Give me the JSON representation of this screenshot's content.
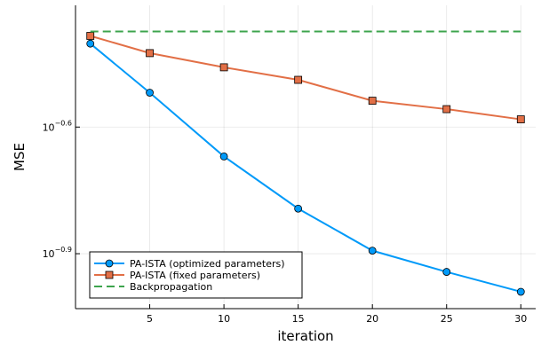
{
  "chart_data": {
    "type": "line",
    "xlabel": "iteration",
    "ylabel": "MSE",
    "y_scale": "log10",
    "xlim": [
      0,
      31
    ],
    "ylim": [
      0.0933,
      0.488
    ],
    "x_ticks": [
      5,
      10,
      15,
      20,
      25,
      30
    ],
    "x_tick_labels": [
      "5",
      "10",
      "15",
      "20",
      "25",
      "30"
    ],
    "y_ticks": [
      0.2512,
      0.1259
    ],
    "y_tick_labels": [
      {
        "base": "10",
        "exp": "−0.6"
      },
      {
        "base": "10",
        "exp": "−0.9"
      }
    ],
    "grid": true,
    "legend_position": "bottom-left",
    "series": [
      {
        "name": "PA-ISTA (optimized parameters)",
        "color": "#009af9",
        "marker": "circle",
        "dash": "solid",
        "x": [
          1,
          5,
          10,
          15,
          20,
          25,
          30
        ],
        "y": [
          0.396,
          0.303,
          0.214,
          0.161,
          0.128,
          0.114,
          0.1023
        ]
      },
      {
        "name": "PA-ISTA (fixed parameters)",
        "color": "#e26f46",
        "marker": "square",
        "dash": "solid",
        "x": [
          1,
          5,
          10,
          15,
          20,
          25,
          30
        ],
        "y": [
          0.413,
          0.376,
          0.348,
          0.325,
          0.29,
          0.277,
          0.262
        ]
      },
      {
        "name": "Backpropagation",
        "color": "#3da44d",
        "marker": "none",
        "dash": "dashed",
        "x": [
          1,
          30
        ],
        "y": [
          0.423,
          0.423
        ]
      }
    ]
  }
}
